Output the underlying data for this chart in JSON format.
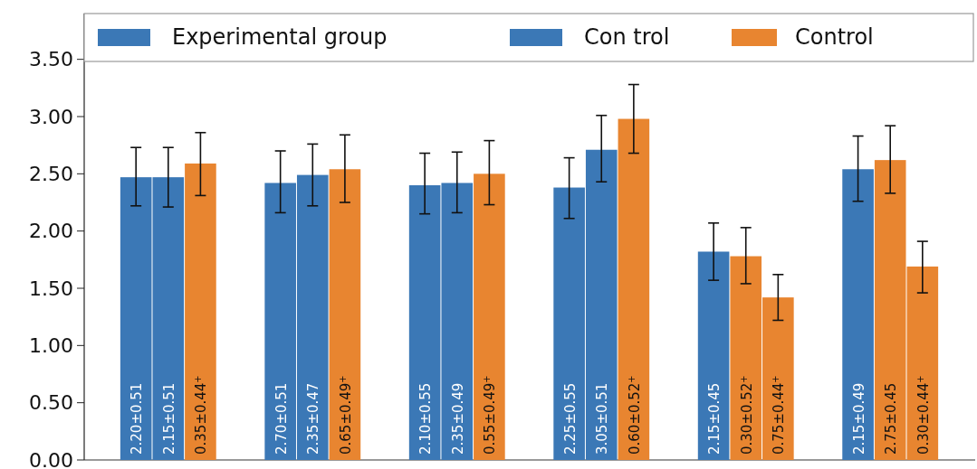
{
  "chart_data": {
    "type": "bar",
    "categories": [
      null,
      null,
      null,
      null,
      null,
      null
    ],
    "ylim": [
      0,
      3.9
    ],
    "yticks": [
      {
        "value": 0,
        "label": "0.00"
      },
      {
        "value": 0.5,
        "label": "0.50"
      },
      {
        "value": 1,
        "label": "1.00"
      },
      {
        "value": 1.5,
        "label": "1.50"
      },
      {
        "value": 2,
        "label": "2.00"
      },
      {
        "value": 2.5,
        "label": "2.50"
      },
      {
        "value": 3,
        "label": "3.00"
      },
      {
        "value": 3.5,
        "label": "3.50"
      }
    ],
    "legend": "top",
    "grid": false,
    "series": [
      {
        "name": "Experimental group",
        "color": "#3b78b6",
        "values": [
          2.47,
          2.42,
          2.4,
          2.38,
          1.82,
          2.54
        ],
        "errors": [
          [
            2.22,
            2.73
          ],
          [
            2.16,
            2.7
          ],
          [
            2.15,
            2.68
          ],
          [
            2.11,
            2.64
          ],
          [
            1.57,
            2.07
          ],
          [
            2.26,
            2.83
          ]
        ]
      },
      {
        "name": "Con trol",
        "color": "#3b78b6",
        "colors": [
          "#3b78b6",
          "#3b78b6",
          "#3b78b6",
          "#3b78b6",
          "#e88530",
          "#e88530"
        ],
        "values": [
          2.47,
          2.49,
          2.42,
          2.71,
          1.78,
          2.62
        ],
        "errors": [
          [
            2.21,
            2.73
          ],
          [
            2.22,
            2.76
          ],
          [
            2.16,
            2.69
          ],
          [
            2.43,
            3.01
          ],
          [
            1.54,
            2.03
          ],
          [
            2.33,
            2.92
          ]
        ]
      },
      {
        "name": "Control",
        "color": "#e88530",
        "values": [
          2.59,
          2.54,
          2.5,
          2.98,
          1.42,
          1.69
        ],
        "errors": [
          [
            2.31,
            2.86
          ],
          [
            2.25,
            2.84
          ],
          [
            2.23,
            2.79
          ],
          [
            2.68,
            3.28
          ],
          [
            1.22,
            1.62
          ],
          [
            1.46,
            1.91
          ]
        ]
      }
    ],
    "annotations": [
      "2.20±0.51",
      "2.15±0.51",
      "0.35±0.44$^{+}$",
      "2.70±0.51",
      "2.35±0.47",
      "0.65±0.49$^{+}$",
      "2.10±0.55",
      "2.35±0.49",
      "0.55±0.49$^{+}$",
      "2.25±0.55",
      "3.05±0.51",
      "0.60±0.52$^{+}$",
      "2.15±0.45",
      "0.30±0.52$^{+}$",
      "0.75±0.44$^{+}$",
      "2.15±0.49",
      "2.75±0.45",
      "0.30±0.44$^{+}$"
    ]
  }
}
